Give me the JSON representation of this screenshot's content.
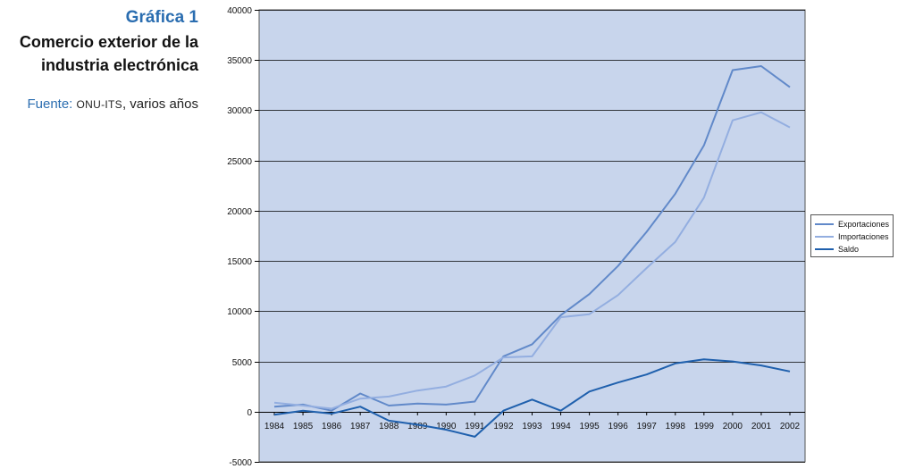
{
  "caption": {
    "title": "Gráfica 1",
    "subtitle_line1": "Comercio exterior de la",
    "subtitle_line2": "industria electrónica",
    "source_label": "Fuente:",
    "source_org": "ONU-ITS",
    "source_rest": ", varios años"
  },
  "colors": {
    "plot_background": "#c8d5ec",
    "gridline": "#000000",
    "exportaciones": "#6189c9",
    "importaciones": "#93aee0",
    "saldo": "#1f60ad"
  },
  "chart_data": {
    "type": "line",
    "title": "",
    "xlabel": "",
    "ylabel": "",
    "ylim": [
      -5000,
      40000
    ],
    "yticks": [
      -5000,
      0,
      5000,
      10000,
      15000,
      20000,
      25000,
      30000,
      35000,
      40000
    ],
    "grid": true,
    "legend_position": "right",
    "categories": [
      "1984",
      "1985",
      "1986",
      "1987",
      "1988",
      "1989",
      "1990",
      "1991",
      "1992",
      "1993",
      "1994",
      "1995",
      "1996",
      "1997",
      "1998",
      "1999",
      "2000",
      "2001",
      "2002"
    ],
    "series": [
      {
        "name": "Exportaciones",
        "color": "#6189c9",
        "values": [
          500,
          700,
          100,
          1800,
          600,
          800,
          700,
          1000,
          5500,
          6700,
          9600,
          11700,
          14500,
          17900,
          21700,
          26500,
          34000,
          34400,
          32300
        ]
      },
      {
        "name": "Importaciones",
        "color": "#93aee0",
        "values": [
          900,
          600,
          300,
          1300,
          1500,
          2100,
          2500,
          3600,
          5400,
          5500,
          9400,
          9700,
          11600,
          14300,
          16900,
          21300,
          29000,
          29800,
          28300
        ]
      },
      {
        "name": "Saldo",
        "color": "#1f60ad",
        "values": [
          -300,
          100,
          -200,
          500,
          -900,
          -1300,
          -1800,
          -2500,
          100,
          1200,
          100,
          2000,
          2900,
          3700,
          4800,
          5200,
          5000,
          4600,
          4000
        ]
      }
    ]
  }
}
